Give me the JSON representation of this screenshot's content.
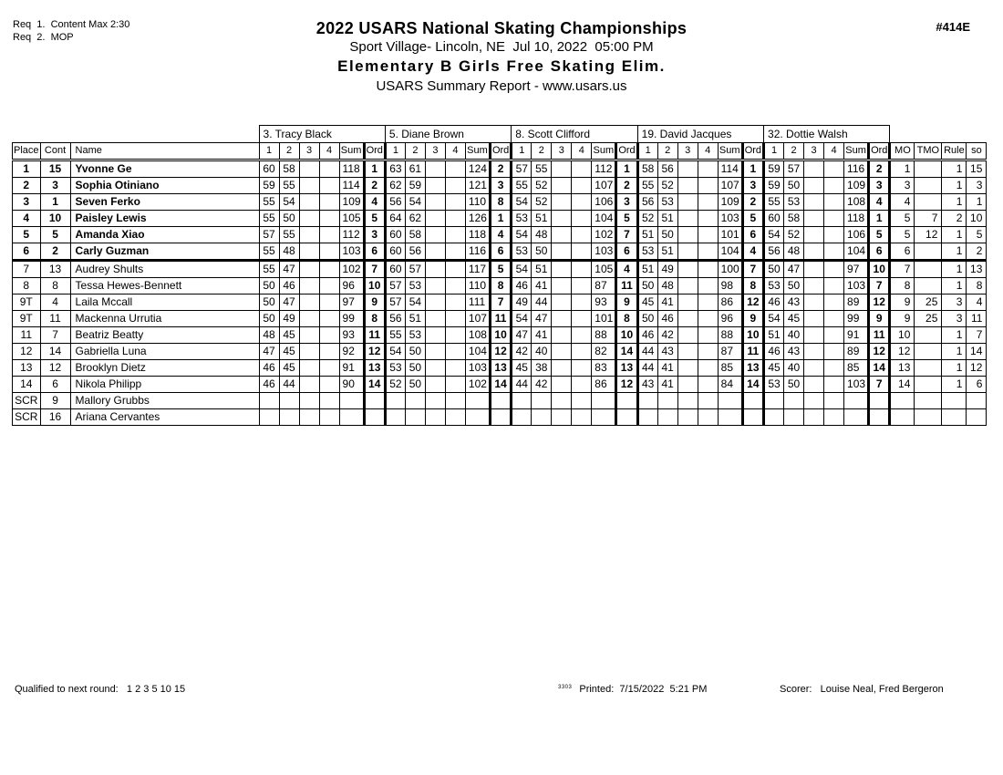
{
  "report": {
    "req_lines": "Req  1.  Content Max 2:30\nReq  2.  MOP",
    "title": "2022 USARS National Skating Championships",
    "venue_line": "Sport Village- Lincoln, NE  Jul 10, 2022  05:00 PM",
    "event_title": "Elementary B Girls Free Skating Elim.",
    "subtitle": "USARS Summary Report - www.usars.us",
    "report_number": "#414E"
  },
  "table": {
    "left_headers": [
      "Place",
      "Cont",
      "Name"
    ],
    "judge_sub_headers": [
      "1",
      "2",
      "3",
      "4",
      "Sum",
      "Ord"
    ],
    "right_headers": [
      "MO",
      "TMO",
      "Rule",
      "so"
    ],
    "judges": [
      "3.  Tracy Black",
      "5.  Diane Brown",
      "8.  Scott Clifford",
      "19.  David Jacques",
      "32.  Dottie Walsh"
    ],
    "rows": [
      {
        "place": "1",
        "cont": "15",
        "name": "Yvonne Ge",
        "bold": true,
        "judges": [
          [
            "60",
            "58",
            "",
            "",
            "118",
            "1"
          ],
          [
            "63",
            "61",
            "",
            "",
            "124",
            "2"
          ],
          [
            "57",
            "55",
            "",
            "",
            "112",
            "1"
          ],
          [
            "58",
            "56",
            "",
            "",
            "114",
            "1"
          ],
          [
            "59",
            "57",
            "",
            "",
            "116",
            "2"
          ]
        ],
        "mo": "1",
        "tmo": "",
        "rule": "1",
        "so": "15"
      },
      {
        "place": "2",
        "cont": "3",
        "name": "Sophia Otiniano",
        "bold": true,
        "judges": [
          [
            "59",
            "55",
            "",
            "",
            "114",
            "2"
          ],
          [
            "62",
            "59",
            "",
            "",
            "121",
            "3"
          ],
          [
            "55",
            "52",
            "",
            "",
            "107",
            "2"
          ],
          [
            "55",
            "52",
            "",
            "",
            "107",
            "3"
          ],
          [
            "59",
            "50",
            "",
            "",
            "109",
            "3"
          ]
        ],
        "mo": "3",
        "tmo": "",
        "rule": "1",
        "so": "3"
      },
      {
        "place": "3",
        "cont": "1",
        "name": "Seven Ferko",
        "bold": true,
        "judges": [
          [
            "55",
            "54",
            "",
            "",
            "109",
            "4"
          ],
          [
            "56",
            "54",
            "",
            "",
            "110",
            "8"
          ],
          [
            "54",
            "52",
            "",
            "",
            "106",
            "3"
          ],
          [
            "56",
            "53",
            "",
            "",
            "109",
            "2"
          ],
          [
            "55",
            "53",
            "",
            "",
            "108",
            "4"
          ]
        ],
        "mo": "4",
        "tmo": "",
        "rule": "1",
        "so": "1"
      },
      {
        "place": "4",
        "cont": "10",
        "name": "Paisley Lewis",
        "bold": true,
        "judges": [
          [
            "55",
            "50",
            "",
            "",
            "105",
            "5"
          ],
          [
            "64",
            "62",
            "",
            "",
            "126",
            "1"
          ],
          [
            "53",
            "51",
            "",
            "",
            "104",
            "5"
          ],
          [
            "52",
            "51",
            "",
            "",
            "103",
            "5"
          ],
          [
            "60",
            "58",
            "",
            "",
            "118",
            "1"
          ]
        ],
        "mo": "5",
        "tmo": "7",
        "rule": "2",
        "so": "10"
      },
      {
        "place": "5",
        "cont": "5",
        "name": "Amanda Xiao",
        "bold": true,
        "judges": [
          [
            "57",
            "55",
            "",
            "",
            "112",
            "3"
          ],
          [
            "60",
            "58",
            "",
            "",
            "118",
            "4"
          ],
          [
            "54",
            "48",
            "",
            "",
            "102",
            "7"
          ],
          [
            "51",
            "50",
            "",
            "",
            "101",
            "6"
          ],
          [
            "54",
            "52",
            "",
            "",
            "106",
            "5"
          ]
        ],
        "mo": "5",
        "tmo": "12",
        "rule": "1",
        "so": "5"
      },
      {
        "place": "6",
        "cont": "2",
        "name": "Carly Guzman",
        "bold": true,
        "judges": [
          [
            "55",
            "48",
            "",
            "",
            "103",
            "6"
          ],
          [
            "60",
            "56",
            "",
            "",
            "116",
            "6"
          ],
          [
            "53",
            "50",
            "",
            "",
            "103",
            "6"
          ],
          [
            "53",
            "51",
            "",
            "",
            "104",
            "4"
          ],
          [
            "56",
            "48",
            "",
            "",
            "104",
            "6"
          ]
        ],
        "mo": "6",
        "tmo": "",
        "rule": "1",
        "so": "2"
      },
      {
        "place": "7",
        "cont": "13",
        "name": "Audrey Shults",
        "bold": false,
        "cut": true,
        "judges": [
          [
            "55",
            "47",
            "",
            "",
            "102",
            "7"
          ],
          [
            "60",
            "57",
            "",
            "",
            "117",
            "5"
          ],
          [
            "54",
            "51",
            "",
            "",
            "105",
            "4"
          ],
          [
            "51",
            "49",
            "",
            "",
            "100",
            "7"
          ],
          [
            "50",
            "47",
            "",
            "",
            "97",
            "10"
          ]
        ],
        "mo": "7",
        "tmo": "",
        "rule": "1",
        "so": "13"
      },
      {
        "place": "8",
        "cont": "8",
        "name": "Tessa Hewes-Bennett",
        "bold": false,
        "judges": [
          [
            "50",
            "46",
            "",
            "",
            "96",
            "10"
          ],
          [
            "57",
            "53",
            "",
            "",
            "110",
            "8"
          ],
          [
            "46",
            "41",
            "",
            "",
            "87",
            "11"
          ],
          [
            "50",
            "48",
            "",
            "",
            "98",
            "8"
          ],
          [
            "53",
            "50",
            "",
            "",
            "103",
            "7"
          ]
        ],
        "mo": "8",
        "tmo": "",
        "rule": "1",
        "so": "8"
      },
      {
        "place": "9T",
        "cont": "4",
        "name": "Laila Mccall",
        "bold": false,
        "judges": [
          [
            "50",
            "47",
            "",
            "",
            "97",
            "9"
          ],
          [
            "57",
            "54",
            "",
            "",
            "111",
            "7"
          ],
          [
            "49",
            "44",
            "",
            "",
            "93",
            "9"
          ],
          [
            "45",
            "41",
            "",
            "",
            "86",
            "12"
          ],
          [
            "46",
            "43",
            "",
            "",
            "89",
            "12"
          ]
        ],
        "mo": "9",
        "tmo": "25",
        "rule": "3",
        "so": "4"
      },
      {
        "place": "9T",
        "cont": "11",
        "name": "Mackenna Urrutia",
        "bold": false,
        "judges": [
          [
            "50",
            "49",
            "",
            "",
            "99",
            "8"
          ],
          [
            "56",
            "51",
            "",
            "",
            "107",
            "11"
          ],
          [
            "54",
            "47",
            "",
            "",
            "101",
            "8"
          ],
          [
            "50",
            "46",
            "",
            "",
            "96",
            "9"
          ],
          [
            "54",
            "45",
            "",
            "",
            "99",
            "9"
          ]
        ],
        "mo": "9",
        "tmo": "25",
        "rule": "3",
        "so": "11"
      },
      {
        "place": "11",
        "cont": "7",
        "name": "Beatriz Beatty",
        "bold": false,
        "judges": [
          [
            "48",
            "45",
            "",
            "",
            "93",
            "11"
          ],
          [
            "55",
            "53",
            "",
            "",
            "108",
            "10"
          ],
          [
            "47",
            "41",
            "",
            "",
            "88",
            "10"
          ],
          [
            "46",
            "42",
            "",
            "",
            "88",
            "10"
          ],
          [
            "51",
            "40",
            "",
            "",
            "91",
            "11"
          ]
        ],
        "mo": "10",
        "tmo": "",
        "rule": "1",
        "so": "7"
      },
      {
        "place": "12",
        "cont": "14",
        "name": "Gabriella Luna",
        "bold": false,
        "judges": [
          [
            "47",
            "45",
            "",
            "",
            "92",
            "12"
          ],
          [
            "54",
            "50",
            "",
            "",
            "104",
            "12"
          ],
          [
            "42",
            "40",
            "",
            "",
            "82",
            "14"
          ],
          [
            "44",
            "43",
            "",
            "",
            "87",
            "11"
          ],
          [
            "46",
            "43",
            "",
            "",
            "89",
            "12"
          ]
        ],
        "mo": "12",
        "tmo": "",
        "rule": "1",
        "so": "14"
      },
      {
        "place": "13",
        "cont": "12",
        "name": "Brooklyn Dietz",
        "bold": false,
        "judges": [
          [
            "46",
            "45",
            "",
            "",
            "91",
            "13"
          ],
          [
            "53",
            "50",
            "",
            "",
            "103",
            "13"
          ],
          [
            "45",
            "38",
            "",
            "",
            "83",
            "13"
          ],
          [
            "44",
            "41",
            "",
            "",
            "85",
            "13"
          ],
          [
            "45",
            "40",
            "",
            "",
            "85",
            "14"
          ]
        ],
        "mo": "13",
        "tmo": "",
        "rule": "1",
        "so": "12"
      },
      {
        "place": "14",
        "cont": "6",
        "name": "Nikola Philipp",
        "bold": false,
        "judges": [
          [
            "46",
            "44",
            "",
            "",
            "90",
            "14"
          ],
          [
            "52",
            "50",
            "",
            "",
            "102",
            "14"
          ],
          [
            "44",
            "42",
            "",
            "",
            "86",
            "12"
          ],
          [
            "43",
            "41",
            "",
            "",
            "84",
            "14"
          ],
          [
            "53",
            "50",
            "",
            "",
            "103",
            "7"
          ]
        ],
        "mo": "14",
        "tmo": "",
        "rule": "1",
        "so": "6"
      },
      {
        "place": "SCR",
        "cont": "9",
        "name": "Mallory Grubbs",
        "bold": false,
        "judges": [
          [
            "",
            "",
            "",
            "",
            "",
            ""
          ],
          [
            "",
            "",
            "",
            "",
            "",
            ""
          ],
          [
            "",
            "",
            "",
            "",
            "",
            ""
          ],
          [
            "",
            "",
            "",
            "",
            "",
            ""
          ],
          [
            "",
            "",
            "",
            "",
            "",
            ""
          ]
        ],
        "mo": "",
        "tmo": "",
        "rule": "",
        "so": ""
      },
      {
        "place": "SCR",
        "cont": "16",
        "name": "Ariana Cervantes",
        "bold": false,
        "judges": [
          [
            "",
            "",
            "",
            "",
            "",
            ""
          ],
          [
            "",
            "",
            "",
            "",
            "",
            ""
          ],
          [
            "",
            "",
            "",
            "",
            "",
            ""
          ],
          [
            "",
            "",
            "",
            "",
            "",
            ""
          ],
          [
            "",
            "",
            "",
            "",
            "",
            ""
          ]
        ],
        "mo": "",
        "tmo": "",
        "rule": "",
        "so": ""
      }
    ]
  },
  "footer": {
    "qualified_label": "Qualified to next round:",
    "qualified_values": "1 2 3 5 10 15",
    "version_stamp": "3303",
    "printed_label": "Printed:",
    "printed_value": "7/15/2022  5:21 PM",
    "scorer_label": "Scorer:",
    "scorer_value": "Louise Neal, Fred Bergeron"
  }
}
